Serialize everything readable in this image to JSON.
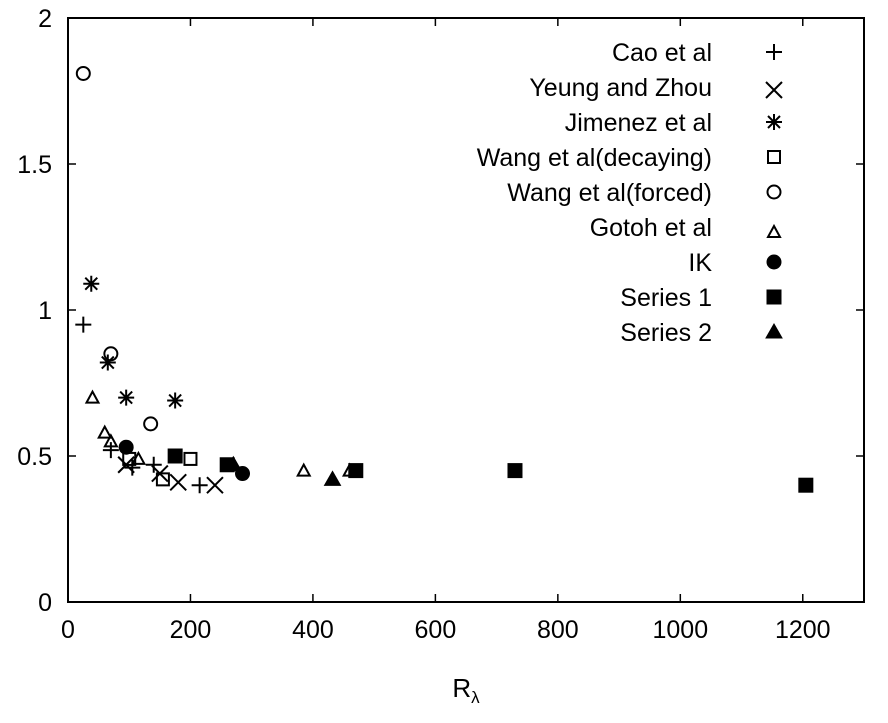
{
  "chart_data": {
    "type": "scatter",
    "title": "",
    "xlabel": "R",
    "xlabel_subscript": "λ",
    "ylabel": "",
    "xlim": [
      0,
      1300
    ],
    "ylim": [
      0,
      2
    ],
    "x_ticks": [
      0,
      200,
      400,
      600,
      800,
      1000,
      1200
    ],
    "y_ticks": [
      0,
      0.5,
      1,
      1.5,
      2
    ],
    "x_tick_labels": [
      "0",
      "200",
      "400",
      "600",
      "800",
      "1000",
      "1200"
    ],
    "y_tick_labels": [
      "0",
      "0.5",
      "1",
      "1.5",
      "2"
    ],
    "grid": false,
    "legend_position": "top-right",
    "series": [
      {
        "name": "Cao et al",
        "marker": "plus",
        "points": [
          [
            25,
            0.95
          ],
          [
            70,
            0.52
          ],
          [
            105,
            0.46
          ],
          [
            140,
            0.47
          ],
          [
            215,
            0.4
          ]
        ]
      },
      {
        "name": "Yeung and Zhou",
        "marker": "cross",
        "points": [
          [
            95,
            0.47
          ],
          [
            150,
            0.44
          ],
          [
            180,
            0.41
          ],
          [
            240,
            0.4
          ]
        ]
      },
      {
        "name": "Jimenez et al",
        "marker": "asterisk",
        "points": [
          [
            38,
            1.09
          ],
          [
            65,
            0.82
          ],
          [
            95,
            0.7
          ],
          [
            175,
            0.69
          ]
        ]
      },
      {
        "name": "Wang et al(decaying)",
        "marker": "square-open",
        "points": [
          [
            100,
            0.49
          ],
          [
            155,
            0.42
          ],
          [
            200,
            0.49
          ]
        ]
      },
      {
        "name": "Wang et al(forced)",
        "marker": "circle-open",
        "points": [
          [
            25,
            1.81
          ],
          [
            70,
            0.85
          ],
          [
            135,
            0.61
          ]
        ]
      },
      {
        "name": "Gotoh et al",
        "marker": "triangle-open",
        "points": [
          [
            40,
            0.7
          ],
          [
            60,
            0.58
          ],
          [
            70,
            0.55
          ],
          [
            115,
            0.49
          ],
          [
            385,
            0.45
          ],
          [
            460,
            0.45
          ]
        ]
      },
      {
        "name": "IK",
        "marker": "circle-filled",
        "points": [
          [
            95,
            0.53
          ],
          [
            285,
            0.44
          ]
        ]
      },
      {
        "name": "Series 1",
        "marker": "square-filled",
        "points": [
          [
            175,
            0.5
          ],
          [
            260,
            0.47
          ],
          [
            470,
            0.45
          ],
          [
            730,
            0.45
          ],
          [
            1205,
            0.4
          ]
        ]
      },
      {
        "name": "Series 2",
        "marker": "triangle-filled",
        "points": [
          [
            270,
            0.47
          ],
          [
            432,
            0.42
          ]
        ]
      }
    ]
  }
}
